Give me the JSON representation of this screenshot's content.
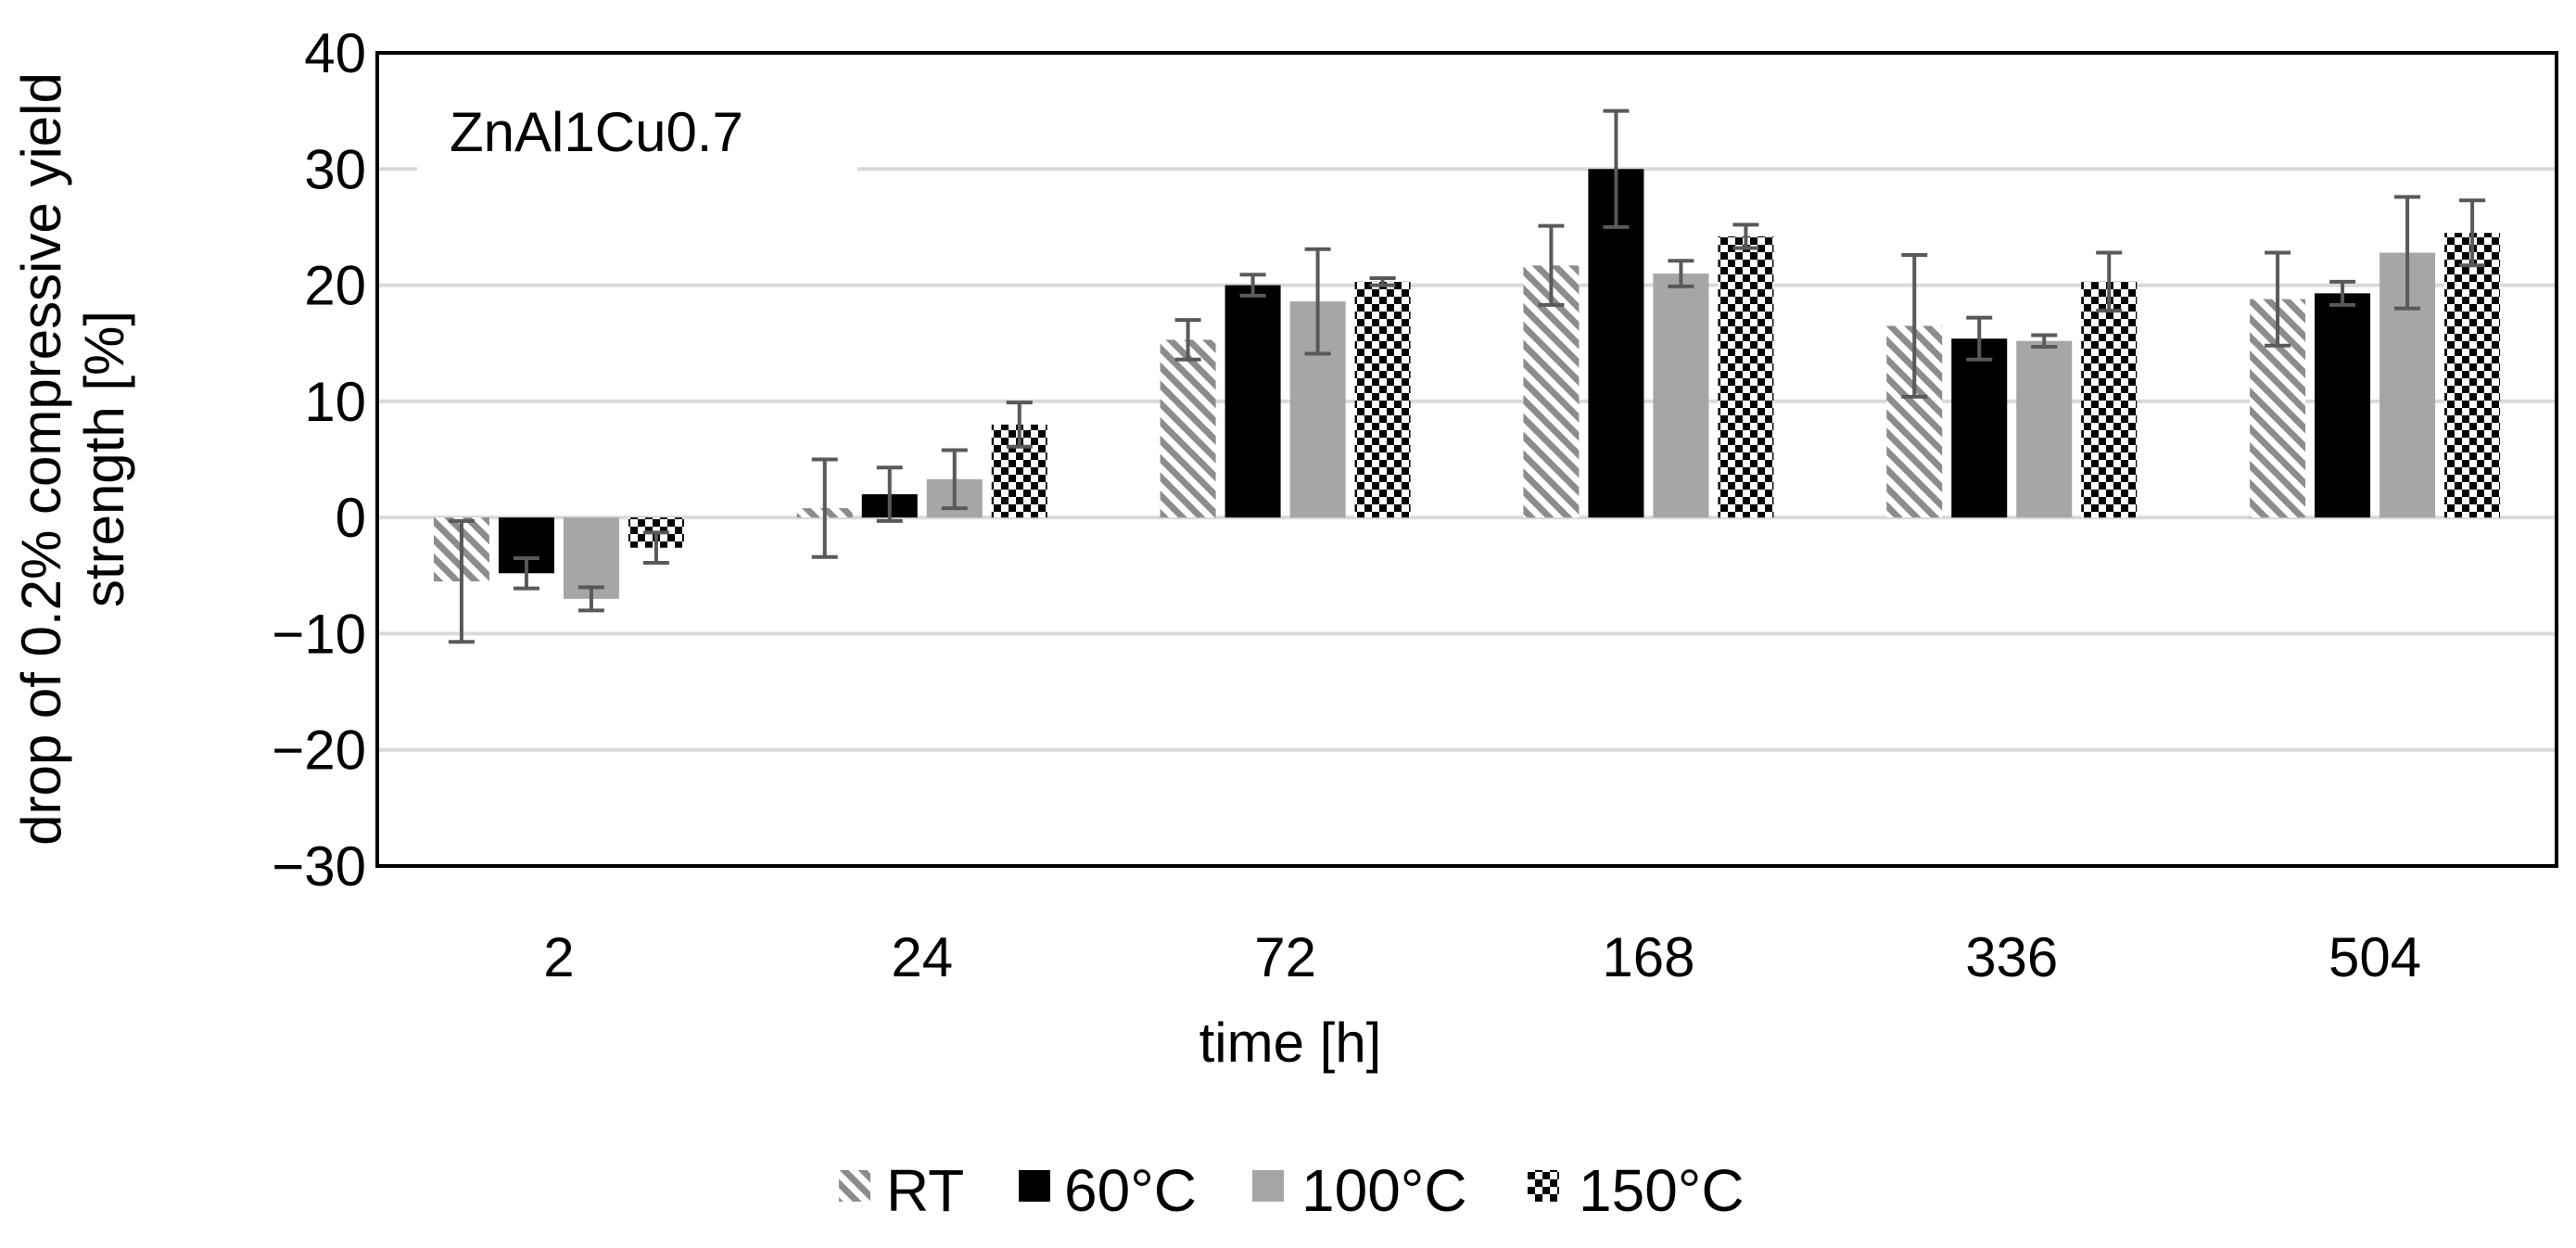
{
  "chart_data": {
    "type": "bar",
    "title": "",
    "annotation": "ZnAl1Cu0.7",
    "xlabel": "time [h]",
    "ylabel_lines": [
      "drop of 0.2% compressive yield",
      "strength [%]"
    ],
    "categories": [
      "2",
      "24",
      "72",
      "168",
      "336",
      "504"
    ],
    "ylim": [
      -30,
      40
    ],
    "yticks": [
      -30,
      -20,
      -10,
      0,
      10,
      20,
      30,
      40
    ],
    "ytick_labels": [
      "−30",
      "−20",
      "−10",
      "0",
      "10",
      "20",
      "30",
      "40"
    ],
    "grid": true,
    "legend_position": "bottom",
    "series": [
      {
        "name": "RT",
        "pattern": "diagonal-hatch",
        "values": [
          -5.5,
          0.8,
          15.3,
          21.7,
          16.5,
          18.8
        ],
        "errors": [
          5.2,
          4.2,
          1.7,
          3.4,
          6.1,
          4.0
        ]
      },
      {
        "name": "60°C",
        "pattern": "solid-black",
        "values": [
          -4.8,
          2.0,
          20.0,
          30.0,
          15.4,
          19.3
        ],
        "errors": [
          1.3,
          2.3,
          0.9,
          5.0,
          1.8,
          1.0
        ]
      },
      {
        "name": "100°C",
        "pattern": "solid-gray",
        "values": [
          -7.0,
          3.3,
          18.6,
          21.0,
          15.2,
          22.8
        ],
        "errors": [
          1.0,
          2.5,
          4.5,
          1.1,
          0.5,
          4.8
        ]
      },
      {
        "name": "150°C",
        "pattern": "checkerboard",
        "values": [
          -2.6,
          8.0,
          20.3,
          24.2,
          20.3,
          24.5
        ],
        "errors": [
          1.3,
          1.9,
          0.3,
          1.0,
          2.5,
          2.8
        ]
      }
    ],
    "colors": {
      "black": "#000000",
      "gray": "#a6a6a6",
      "hatch": "#8c8c8c",
      "grid": "#d9d9d9",
      "error_bar": "#595959"
    }
  }
}
